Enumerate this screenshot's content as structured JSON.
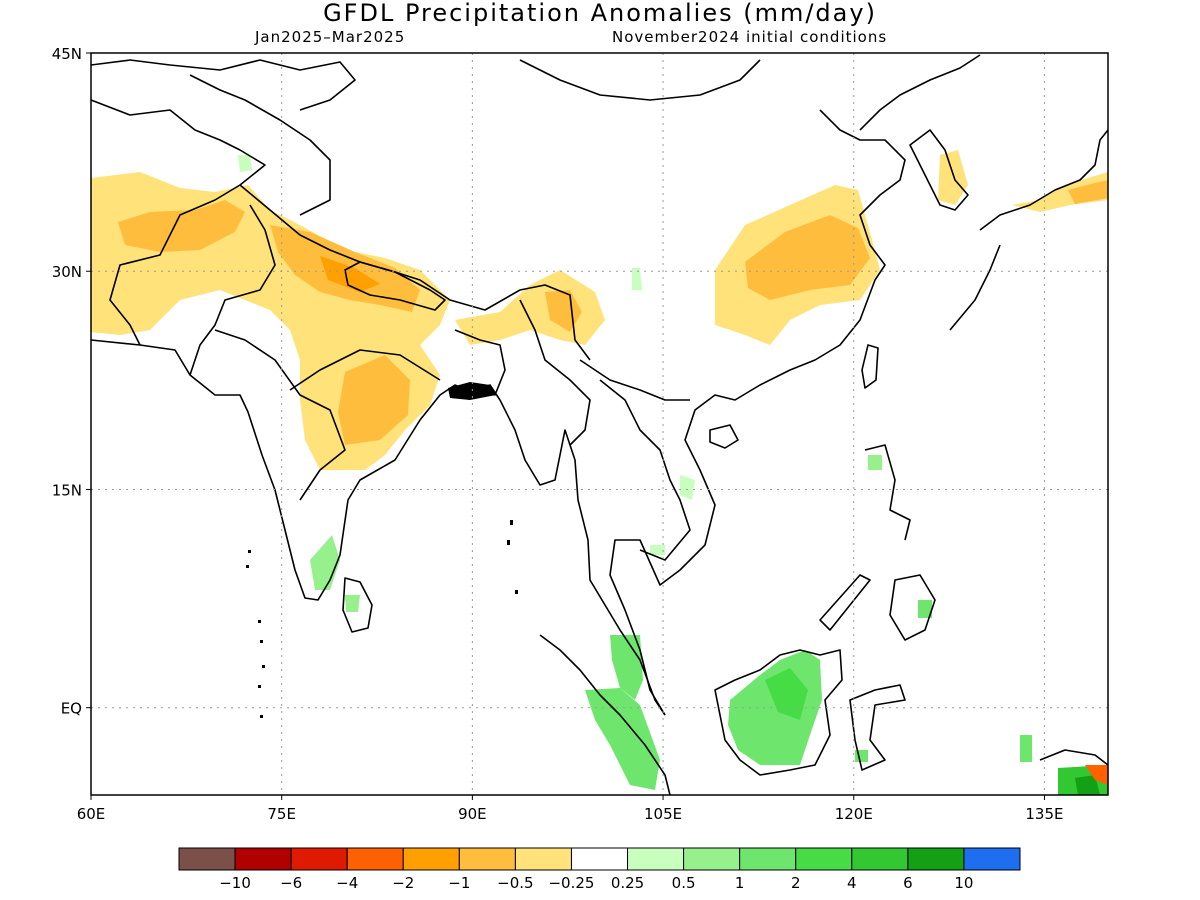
{
  "title": "GFDL Precipitation Anomalies (mm/day)",
  "period": "Jan2025–Mar2025",
  "conditions": "November2024 initial conditions",
  "map": {
    "lon_range": [
      60,
      140
    ],
    "lat_range": [
      -6,
      45
    ],
    "lon_ticks": [
      {
        "lon": 60,
        "label": "60E"
      },
      {
        "lon": 75,
        "label": "75E"
      },
      {
        "lon": 90,
        "label": "90E"
      },
      {
        "lon": 105,
        "label": "105E"
      },
      {
        "lon": 120,
        "label": "120E"
      },
      {
        "lon": 135,
        "label": "135E"
      }
    ],
    "lat_ticks": [
      {
        "lat": 45,
        "label": "45N"
      },
      {
        "lat": 30,
        "label": "30N"
      },
      {
        "lat": 15,
        "label": "15N"
      },
      {
        "lat": 0,
        "label": "EQ"
      }
    ],
    "gridlines": "dotted"
  },
  "colorbar": {
    "colors": [
      "#7a5048",
      "#b00000",
      "#de1a00",
      "#ff6000",
      "#ff9f00",
      "#ffbd3e",
      "#ffe27a",
      "#ffffff",
      "#c8ffbe",
      "#96f08c",
      "#6ee66e",
      "#46dc46",
      "#32c832",
      "#14a014",
      "#1e6ef0"
    ],
    "labels": [
      "−10",
      "−6",
      "−4",
      "−2",
      "−1",
      "−0.5",
      "−0.25",
      "0.25",
      "0.5",
      "1",
      "2",
      "4",
      "6",
      "10"
    ]
  },
  "anomaly_regions": [
    {
      "name": "Northwest Himalaya / Pakistan",
      "category": "-0.5 to -0.25",
      "color": "#ffe27a"
    },
    {
      "name": "Gangetic plain and central India",
      "category": "-1 to -0.5",
      "color": "#ffbd3e"
    },
    {
      "name": "Northeast India / Myanmar border",
      "category": "-1 to -0.5",
      "color": "#ffbd3e"
    },
    {
      "name": "Central-east China",
      "category": "-1 to -0.5",
      "color": "#ffbd3e"
    },
    {
      "name": "Korea and southern Japan",
      "category": "-0.5 to -0.25",
      "color": "#ffe27a"
    },
    {
      "name": "Borneo",
      "category": "1 to 2",
      "color": "#6ee66e"
    },
    {
      "name": "Sumatra / Malaya",
      "category": "1 to 2",
      "color": "#6ee66e"
    },
    {
      "name": "Sri Lanka / south India",
      "category": "0.25 to 1",
      "color": "#96f08c"
    },
    {
      "name": "New Guinea (NE corner)",
      "category": "2 to 6",
      "color": "#32c832"
    }
  ]
}
